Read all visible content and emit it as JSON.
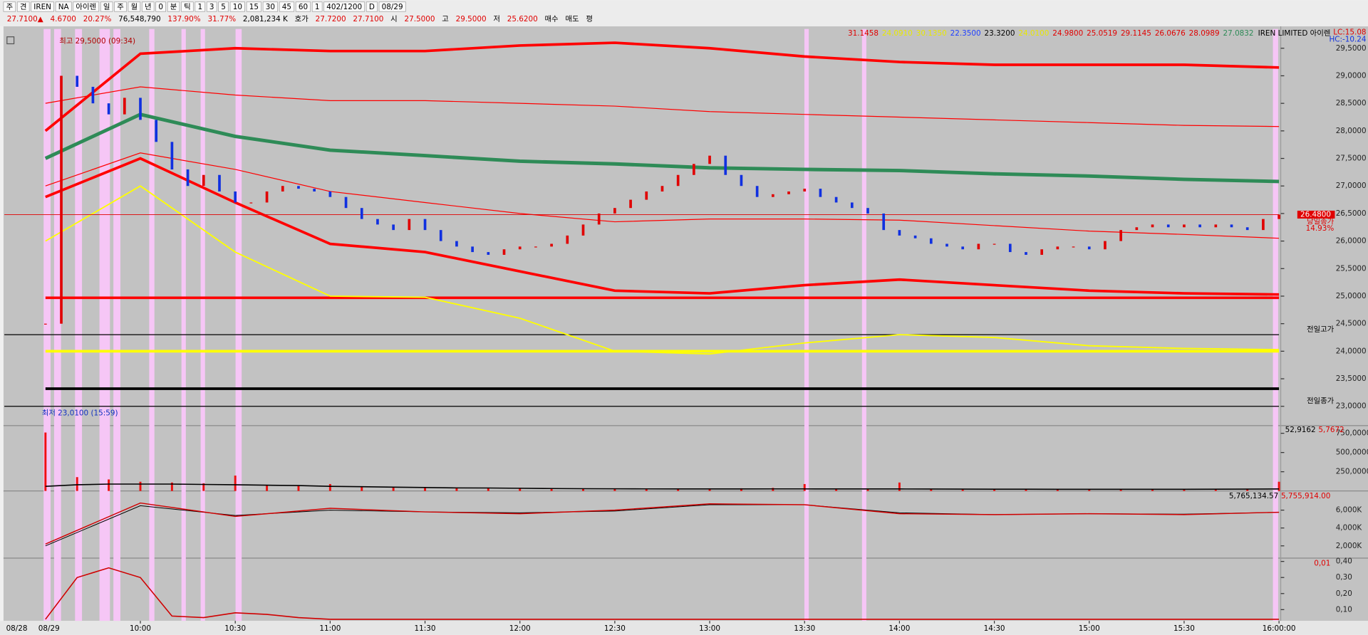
{
  "toolbar": {
    "row1": [
      "주",
      "견",
      "IREN",
      "NA",
      "아이렌",
      "일",
      "주",
      "월",
      "년",
      "0",
      "분",
      "틱",
      "1",
      "3",
      "5",
      "10",
      "15",
      "30",
      "45",
      "60",
      "1",
      "402/1200",
      "D",
      "08/29"
    ],
    "row2": [
      {
        "text": "27.7100▲",
        "color": "#e00000"
      },
      {
        "text": "4.6700",
        "color": "#e00000"
      },
      {
        "text": "20.27%",
        "color": "#e00000"
      },
      {
        "text": "76,548,790",
        "color": "#000000"
      },
      {
        "text": "137.90%",
        "color": "#e00000"
      },
      {
        "text": "31.77%",
        "color": "#e00000"
      },
      {
        "text": "2,081,234 K",
        "color": "#000000"
      },
      {
        "text": "호가",
        "color": "#000000"
      },
      {
        "text": "27.7200",
        "color": "#e00000"
      },
      {
        "text": "27.7100",
        "color": "#e00000"
      },
      {
        "text": "시",
        "color": "#000000"
      },
      {
        "text": "27.5000",
        "color": "#e00000"
      },
      {
        "text": "고",
        "color": "#000000"
      },
      {
        "text": "29.5000",
        "color": "#e00000"
      },
      {
        "text": "저",
        "color": "#000000"
      },
      {
        "text": "25.6200",
        "color": "#e00000"
      },
      {
        "text": "매수",
        "color": "#000000"
      },
      {
        "text": "매도",
        "color": "#000000"
      },
      {
        "text": "평",
        "color": "#000000"
      }
    ]
  },
  "chart": {
    "xlim": [
      "09:17",
      "16:00"
    ],
    "xticks": [
      "10:00",
      "10:30",
      "11:00",
      "11:30",
      "12:00",
      "12:30",
      "13:00",
      "13:30",
      "14:00",
      "14:30",
      "15:00",
      "15:30",
      "16:00:00"
    ],
    "date_labels": [
      "08/28",
      "08/29"
    ],
    "price_panel": {
      "title": "IREN LIMITED  아이렌",
      "lc": "LC:15.08",
      "hc": "HC:-10.24",
      "legend": [
        {
          "text": "31.1458",
          "color": "#e00000"
        },
        {
          "text": "24.0910",
          "color": "#e8e800"
        },
        {
          "text": "30.1350",
          "color": "#e8e800"
        },
        {
          "text": "22.3500",
          "color": "#2040ff"
        },
        {
          "text": "23.3200",
          "color": "#000000"
        },
        {
          "text": "24.0100",
          "color": "#e8e800"
        },
        {
          "text": "24.9800",
          "color": "#e00000"
        },
        {
          "text": "25.0519",
          "color": "#e00000"
        },
        {
          "text": "29.1145",
          "color": "#e00000"
        },
        {
          "text": "26.0676",
          "color": "#e00000"
        },
        {
          "text": "28.0989",
          "color": "#e00000"
        },
        {
          "text": "27.0832",
          "color": "#2e8b57"
        }
      ],
      "ylim": [
        22.65,
        29.85
      ],
      "yticks": [
        {
          "value": 23,
          "label": "23,0000"
        },
        {
          "value": 23.5,
          "label": "23,5000"
        },
        {
          "value": 24,
          "label": "24,0000"
        },
        {
          "value": 24.5,
          "label": "24,5000"
        },
        {
          "value": 25,
          "label": "25,0000"
        },
        {
          "value": 25.5,
          "label": "25,5000"
        },
        {
          "value": 26,
          "label": "26,0000"
        },
        {
          "value": 26.5,
          "label": "26,5000"
        },
        {
          "value": 27,
          "label": "27,0000"
        },
        {
          "value": 27.5,
          "label": "27,5000"
        },
        {
          "value": 28,
          "label": "28,0000"
        },
        {
          "value": 28.5,
          "label": "28,5000"
        },
        {
          "value": 29,
          "label": "29,0000"
        },
        {
          "value": 29.5,
          "label": "29,5000"
        }
      ],
      "high_label": "최고 29,5000 (09:34)",
      "low_label": "최저 23,0100 (15:59)",
      "current": {
        "value": 26.48,
        "label": "26.4800",
        "caption": "당일종가",
        "change": "14.93%"
      },
      "levels": [
        {
          "value": 24.3,
          "color": "#000000",
          "width": 1,
          "label": "전일고가"
        },
        {
          "value": 23.0,
          "color": "#000000",
          "width": 1,
          "label": "전일종가"
        },
        {
          "value": 24.97,
          "color": "#ff0000",
          "width": 3
        },
        {
          "value": 24.0,
          "color": "#ffff00",
          "width": 3
        },
        {
          "value": 23.32,
          "color": "#000000",
          "width": 3
        }
      ],
      "candles": {
        "up_color": "#e00000",
        "down_color": "#1030e0",
        "x": [
          "09:30",
          "09:35",
          "09:40",
          "09:45",
          "09:50",
          "09:55",
          "10:00",
          "10:05",
          "10:10",
          "10:15",
          "10:20",
          "10:25",
          "10:30",
          "10:35",
          "10:40",
          "10:45",
          "10:50",
          "10:55",
          "11:00",
          "11:05",
          "11:10",
          "11:15",
          "11:20",
          "11:25",
          "11:30",
          "11:35",
          "11:40",
          "11:45",
          "11:50",
          "11:55",
          "12:00",
          "12:05",
          "12:10",
          "12:15",
          "12:20",
          "12:25",
          "12:30",
          "12:35",
          "12:40",
          "12:45",
          "12:50",
          "12:55",
          "13:00",
          "13:05",
          "13:10",
          "13:15",
          "13:20",
          "13:25",
          "13:30",
          "13:35",
          "13:40",
          "13:45",
          "13:50",
          "13:55",
          "14:00",
          "14:05",
          "14:10",
          "14:15",
          "14:20",
          "14:25",
          "14:30",
          "14:35",
          "14:40",
          "14:45",
          "14:50",
          "14:55",
          "15:00",
          "15:05",
          "15:10",
          "15:15",
          "15:20",
          "15:25",
          "15:30",
          "15:35",
          "15:40",
          "15:45",
          "15:50",
          "15:55",
          "16:00"
        ],
        "close": [
          24.5,
          29.0,
          28.8,
          28.5,
          28.3,
          28.6,
          28.2,
          27.8,
          27.3,
          27.0,
          27.2,
          26.9,
          26.7,
          26.7,
          26.9,
          27.0,
          26.95,
          26.9,
          26.8,
          26.6,
          26.4,
          26.3,
          26.2,
          26.4,
          26.2,
          26.0,
          25.9,
          25.8,
          25.75,
          25.85,
          25.9,
          25.9,
          25.95,
          26.1,
          26.3,
          26.5,
          26.6,
          26.75,
          26.9,
          27.0,
          27.2,
          27.4,
          27.55,
          27.2,
          27.0,
          26.8,
          26.85,
          26.9,
          26.95,
          26.8,
          26.7,
          26.6,
          26.5,
          26.2,
          26.1,
          26.05,
          25.95,
          25.9,
          25.85,
          25.95,
          25.95,
          25.8,
          25.75,
          25.85,
          25.9,
          25.9,
          25.85,
          26.0,
          26.2,
          26.25,
          26.3,
          26.25,
          26.3,
          26.25,
          26.3,
          26.25,
          26.2,
          26.4,
          26.48
        ]
      },
      "bands": {
        "x": [
          "09:30",
          "10:00",
          "10:30",
          "11:00",
          "11:30",
          "12:00",
          "12:30",
          "13:00",
          "13:30",
          "14:00",
          "14:30",
          "15:00",
          "15:30",
          "16:00"
        ],
        "series": [
          {
            "color": "#ff0000",
            "width": 3,
            "values": [
              28.0,
              29.4,
              29.5,
              29.45,
              29.45,
              29.55,
              29.6,
              29.5,
              29.35,
              29.25,
              29.2,
              29.2,
              29.2,
              29.15
            ]
          },
          {
            "color": "#ff0000",
            "width": 1,
            "values": [
              28.5,
              28.8,
              28.65,
              28.55,
              28.55,
              28.5,
              28.45,
              28.35,
              28.3,
              28.25,
              28.2,
              28.15,
              28.1,
              28.08
            ]
          },
          {
            "color": "#2e8b57",
            "width": 4,
            "values": [
              27.5,
              28.3,
              27.9,
              27.65,
              27.55,
              27.45,
              27.4,
              27.33,
              27.3,
              27.28,
              27.22,
              27.18,
              27.12,
              27.08
            ]
          },
          {
            "color": "#ff0000",
            "width": 1,
            "values": [
              27.0,
              27.6,
              27.3,
              26.9,
              26.7,
              26.5,
              26.35,
              26.4,
              26.4,
              26.38,
              26.28,
              26.18,
              26.12,
              26.05
            ]
          },
          {
            "color": "#ff0000",
            "width": 3,
            "values": [
              26.8,
              27.5,
              26.7,
              25.95,
              25.8,
              25.45,
              25.1,
              25.05,
              25.2,
              25.3,
              25.2,
              25.1,
              25.05,
              25.03
            ]
          },
          {
            "color": "#ffff00",
            "width": 1.5,
            "values": [
              26.0,
              27.0,
              25.8,
              25.0,
              24.98,
              24.6,
              24.0,
              23.95,
              24.15,
              24.3,
              24.25,
              24.1,
              24.05,
              24.03
            ]
          }
        ]
      }
    },
    "volume_panel": {
      "ylim": [
        0,
        850000
      ],
      "yticks": [
        {
          "value": 250000,
          "label": "250,0000"
        },
        {
          "value": 500000,
          "label": "500,0000"
        },
        {
          "value": 750000,
          "label": "750,0000"
        }
      ],
      "readout": [
        {
          "text": "52,9162",
          "color": "#000000"
        },
        {
          "text": "5,7672",
          "color": "#e00000"
        }
      ],
      "color": "#ee1010",
      "x": [
        "09:30",
        "09:40",
        "09:50",
        "10:00",
        "10:10",
        "10:20",
        "10:30",
        "10:40",
        "10:50",
        "11:00",
        "11:10",
        "11:20",
        "11:30",
        "11:40",
        "11:50",
        "12:00",
        "12:10",
        "12:20",
        "12:30",
        "12:40",
        "12:50",
        "13:00",
        "13:10",
        "13:20",
        "13:30",
        "13:40",
        "13:50",
        "14:00",
        "14:10",
        "14:20",
        "14:30",
        "14:40",
        "14:50",
        "15:00",
        "15:10",
        "15:20",
        "15:30",
        "15:40",
        "15:50",
        "16:00"
      ],
      "values": [
        760000,
        180000,
        150000,
        120000,
        110000,
        100000,
        200000,
        80000,
        70000,
        90000,
        60000,
        50000,
        45000,
        40000,
        35000,
        30000,
        30000,
        28000,
        26000,
        25000,
        25000,
        30000,
        35000,
        40000,
        90000,
        20000,
        30000,
        110000,
        20000,
        18000,
        20000,
        22000,
        20000,
        20000,
        22000,
        20000,
        25000,
        25000,
        30000,
        120000
      ],
      "ma": {
        "color": "#000000",
        "values": [
          60000,
          80000,
          90000,
          90000,
          90000,
          85000,
          80000,
          75000,
          70000,
          60000,
          55000,
          50000,
          45000,
          40000,
          38000,
          35000,
          32000,
          30000,
          28000,
          27000,
          26000,
          26000,
          26000,
          27000,
          27000,
          26000,
          26000,
          26000,
          25000,
          24000,
          23000,
          23000,
          22000,
          22000,
          22000,
          22000,
          22000,
          23000,
          24000,
          26000
        ]
      }
    },
    "obv_panel": {
      "ylim": [
        630000,
        7950000
      ],
      "yticks": [
        {
          "value": 2000000,
          "label": "2,000K"
        },
        {
          "value": 4000000,
          "label": "4,000K"
        },
        {
          "value": 6000000,
          "label": "6,000K"
        }
      ],
      "readout": [
        {
          "text": "5,765,134.57",
          "color": "#000000"
        },
        {
          "text": "5,755,914.00",
          "color": "#e00000"
        }
      ],
      "x": [
        "09:30",
        "10:00",
        "10:30",
        "11:00",
        "11:30",
        "12:00",
        "12:30",
        "13:00",
        "13:30",
        "14:00",
        "14:30",
        "15:00",
        "15:30",
        "16:00"
      ],
      "series": [
        {
          "color": "#000000",
          "width": 0.8,
          "values": [
            2000000,
            6500000,
            5400000,
            6000000,
            5800000,
            5700000,
            5900000,
            6600000,
            6600000,
            5700000,
            5500000,
            5600000,
            5550000,
            5755914.0
          ]
        },
        {
          "color": "#d00000",
          "width": 1.2,
          "values": [
            2200000,
            6800000,
            5300000,
            6200000,
            5800000,
            5600000,
            6000000,
            6700000,
            6600000,
            5600000,
            5500000,
            5600000,
            5500000,
            5765134.57
          ]
        }
      ]
    },
    "osc_panel": {
      "ylim": [
        0.03,
        0.41
      ],
      "yticks": [
        {
          "value": 0.1,
          "label": "0,10"
        },
        {
          "value": 0.2,
          "label": "0,20"
        },
        {
          "value": 0.3,
          "label": "0,30"
        },
        {
          "value": 0.4,
          "label": "0,40"
        }
      ],
      "readout": "0,01",
      "x": [
        "09:30",
        "09:40",
        "09:50",
        "10:00",
        "10:10",
        "10:20",
        "10:30",
        "10:40",
        "10:50",
        "11:00",
        "11:10",
        "11:20",
        "11:30",
        "11:40",
        "11:50",
        "12:00",
        "12:10",
        "12:20",
        "12:30",
        "12:40",
        "12:50",
        "13:00",
        "13:10",
        "13:20",
        "13:30",
        "13:40",
        "13:50",
        "14:00",
        "14:10",
        "14:20",
        "14:30",
        "14:40",
        "14:50",
        "15:00",
        "15:10",
        "15:20",
        "15:30",
        "15:40",
        "15:50",
        "16:00"
      ],
      "color": "#d00000",
      "values": [
        0.04,
        0.3,
        0.36,
        0.3,
        0.06,
        0.05,
        0.08,
        0.07,
        0.05,
        0.04,
        0.04,
        0.04,
        0.04,
        0.04,
        0.04,
        0.04,
        0.04,
        0.04,
        0.04,
        0.04,
        0.04,
        0.04,
        0.04,
        0.04,
        0.04,
        0.04,
        0.04,
        0.04,
        0.04,
        0.04,
        0.04,
        0.04,
        0.04,
        0.04,
        0.04,
        0.04,
        0.04,
        0.04,
        0.04,
        0.04
      ]
    }
  }
}
